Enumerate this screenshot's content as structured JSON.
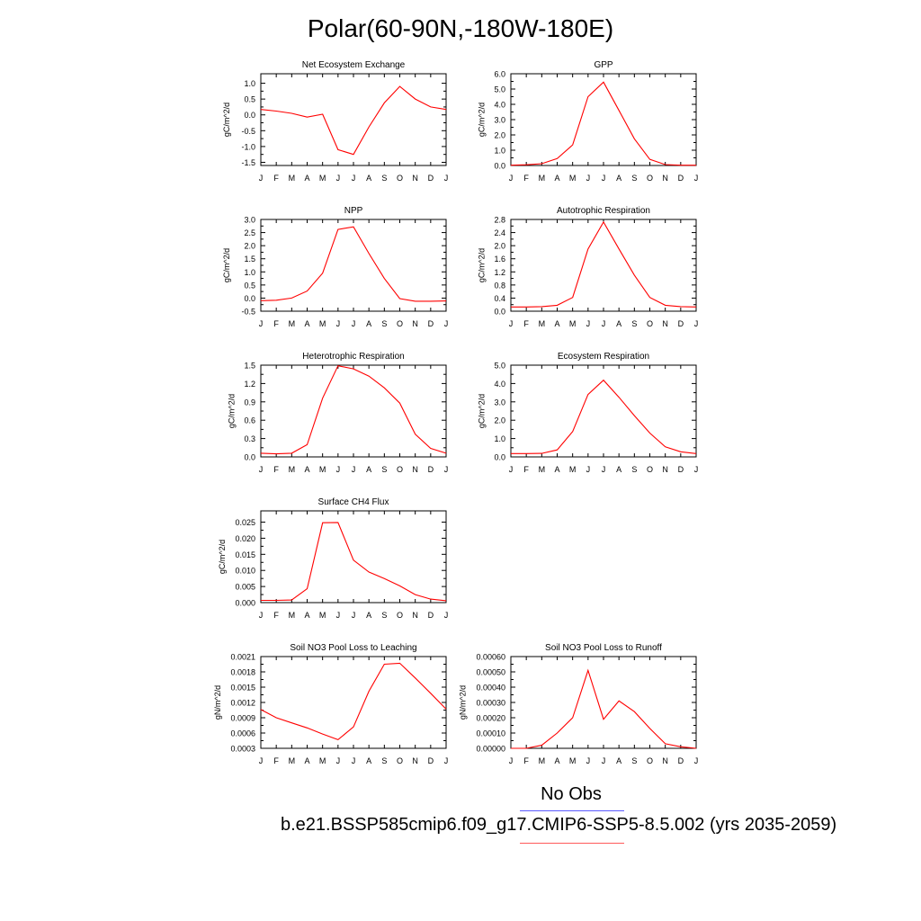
{
  "title": "Polar(60-90N,-180W-180E)",
  "legend": {
    "obs_label": "No Obs",
    "case_label": "b.e21.BSSP585cmip6.f09_g17.CMIP6-SSP5-8.5.002 (yrs 2035-2059)",
    "obs_color": "#5a5aff",
    "case_color": "#ff5a5a"
  },
  "chart_data": [
    {
      "type": "line",
      "title": "Net Ecosystem Exchange",
      "ylabel": "gC/m^2/d",
      "categories": [
        "J",
        "F",
        "M",
        "A",
        "M",
        "J",
        "J",
        "A",
        "S",
        "O",
        "N",
        "D",
        "J"
      ],
      "yticks": [
        "1.0",
        "0.5",
        "0.0",
        "-0.5",
        "-1.0",
        "-1.5"
      ],
      "ylim": [
        -1.6,
        1.3
      ],
      "series": [
        {
          "name": "model",
          "color": "#ff0000",
          "values": [
            0.17,
            0.12,
            0.05,
            -0.07,
            0.02,
            -1.1,
            -1.25,
            -0.38,
            0.38,
            0.9,
            0.5,
            0.25,
            0.17
          ]
        }
      ]
    },
    {
      "type": "line",
      "title": "GPP",
      "ylabel": "gC/m^2/d",
      "categories": [
        "J",
        "F",
        "M",
        "A",
        "M",
        "J",
        "J",
        "A",
        "S",
        "O",
        "N",
        "D",
        "J"
      ],
      "yticks": [
        "6.0",
        "5.0",
        "4.0",
        "3.0",
        "2.0",
        "1.0",
        "0.0"
      ],
      "ylim": [
        0,
        6.0
      ],
      "series": [
        {
          "name": "model",
          "color": "#ff0000",
          "values": [
            0.02,
            0.05,
            0.12,
            0.45,
            1.35,
            4.5,
            5.45,
            3.6,
            1.75,
            0.4,
            0.06,
            0.02,
            0.02
          ]
        }
      ]
    },
    {
      "type": "line",
      "title": "NPP",
      "ylabel": "gC/m^2/d",
      "categories": [
        "J",
        "F",
        "M",
        "A",
        "M",
        "J",
        "J",
        "A",
        "S",
        "O",
        "N",
        "D",
        "J"
      ],
      "yticks": [
        "3.0",
        "2.5",
        "2.0",
        "1.5",
        "1.0",
        "0.5",
        "0.0",
        "-0.5"
      ],
      "ylim": [
        -0.5,
        3.0
      ],
      "series": [
        {
          "name": "model",
          "color": "#ff0000",
          "values": [
            -0.1,
            -0.08,
            0.0,
            0.27,
            0.95,
            2.62,
            2.72,
            1.7,
            0.75,
            -0.02,
            -0.12,
            -0.12,
            -0.11
          ]
        }
      ]
    },
    {
      "type": "line",
      "title": "Autotrophic Respiration",
      "ylabel": "gC/m^2/d",
      "categories": [
        "J",
        "F",
        "M",
        "A",
        "M",
        "J",
        "J",
        "A",
        "S",
        "O",
        "N",
        "D",
        "J"
      ],
      "yticks": [
        "2.8",
        "2.4",
        "2.0",
        "1.6",
        "1.2",
        "0.8",
        "0.4",
        "0.0"
      ],
      "ylim": [
        0,
        2.8
      ],
      "series": [
        {
          "name": "model",
          "color": "#ff0000",
          "values": [
            0.13,
            0.13,
            0.14,
            0.18,
            0.42,
            1.9,
            2.72,
            1.9,
            1.1,
            0.42,
            0.18,
            0.14,
            0.13
          ]
        }
      ]
    },
    {
      "type": "line",
      "title": "Heterotrophic Respiration",
      "ylabel": "gC/m^2/d",
      "categories": [
        "J",
        "F",
        "M",
        "A",
        "M",
        "J",
        "J",
        "A",
        "S",
        "O",
        "N",
        "D",
        "J"
      ],
      "yticks": [
        "1.5",
        "1.2",
        "0.9",
        "0.6",
        "0.3",
        "0.0"
      ],
      "ylim": [
        0,
        1.5
      ],
      "series": [
        {
          "name": "model",
          "color": "#ff0000",
          "values": [
            0.06,
            0.05,
            0.06,
            0.2,
            0.96,
            1.49,
            1.44,
            1.32,
            1.13,
            0.88,
            0.37,
            0.14,
            0.06
          ]
        }
      ]
    },
    {
      "type": "line",
      "title": "Ecosystem Respiration",
      "ylabel": "gC/m^2/d",
      "categories": [
        "J",
        "F",
        "M",
        "A",
        "M",
        "J",
        "J",
        "A",
        "S",
        "O",
        "N",
        "D",
        "J"
      ],
      "yticks": [
        "5.0",
        "4.0",
        "3.0",
        "2.0",
        "1.0",
        "0.0"
      ],
      "ylim": [
        0,
        5.0
      ],
      "series": [
        {
          "name": "model",
          "color": "#ff0000",
          "values": [
            0.18,
            0.18,
            0.19,
            0.38,
            1.38,
            3.4,
            4.18,
            3.25,
            2.25,
            1.3,
            0.55,
            0.28,
            0.18
          ]
        }
      ]
    },
    {
      "type": "line",
      "title": "Surface CH4 Flux",
      "ylabel": "gC/m^2/d",
      "categories": [
        "J",
        "F",
        "M",
        "A",
        "M",
        "J",
        "J",
        "A",
        "S",
        "O",
        "N",
        "D",
        "J"
      ],
      "yticks": [
        "0.025",
        "0.020",
        "0.015",
        "0.010",
        "0.005",
        "0.000"
      ],
      "ylim": [
        0,
        0.0285
      ],
      "series": [
        {
          "name": "model",
          "color": "#ff0000",
          "values": [
            0.0007,
            0.0007,
            0.0008,
            0.0043,
            0.0248,
            0.0249,
            0.0132,
            0.0095,
            0.0075,
            0.0052,
            0.0025,
            0.0011,
            0.0006
          ]
        }
      ]
    },
    {
      "type": "line",
      "title": "Soil NO3 Pool Loss to Leaching",
      "ylabel": "gN/m^2/d",
      "categories": [
        "J",
        "F",
        "M",
        "A",
        "M",
        "J",
        "J",
        "A",
        "S",
        "O",
        "N",
        "D",
        "J"
      ],
      "yticks": [
        "0.0021",
        "0.0018",
        "0.0015",
        "0.0012",
        "0.0009",
        "0.0006",
        "0.0003"
      ],
      "ylim": [
        0.0003,
        0.0021
      ],
      "series": [
        {
          "name": "model",
          "color": "#ff0000",
          "values": [
            0.00106,
            0.0009,
            0.0008,
            0.0007,
            0.00058,
            0.00047,
            0.00072,
            0.00142,
            0.00195,
            0.00197,
            0.00168,
            0.00138,
            0.00107
          ]
        }
      ]
    },
    {
      "type": "line",
      "title": "Soil NO3 Pool Loss to Runoff",
      "ylabel": "gN/m^2/d",
      "categories": [
        "J",
        "F",
        "M",
        "A",
        "M",
        "J",
        "J",
        "A",
        "S",
        "O",
        "N",
        "D",
        "J"
      ],
      "yticks": [
        "0.00060",
        "0.00050",
        "0.00040",
        "0.00030",
        "0.00020",
        "0.00010",
        "0.00000"
      ],
      "ylim": [
        0,
        0.0006
      ],
      "series": [
        {
          "name": "model",
          "color": "#ff0000",
          "values": [
            0.0,
            0.0,
            2e-05,
            0.0001,
            0.0002,
            0.00051,
            0.00019,
            0.00031,
            0.00024,
            0.00013,
            3e-05,
            1e-05,
            0.0
          ]
        }
      ]
    }
  ]
}
